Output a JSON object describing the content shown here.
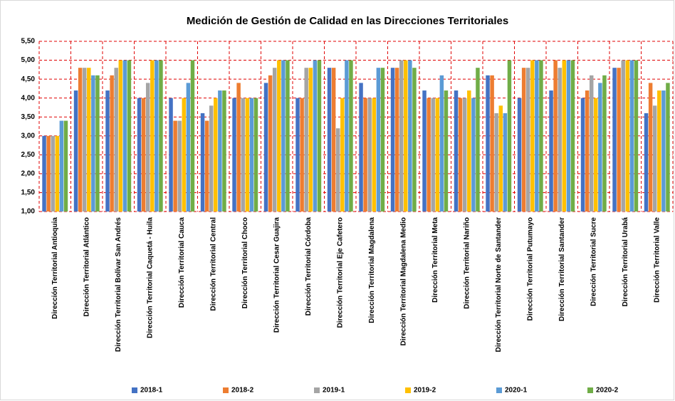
{
  "chart_data": {
    "type": "bar",
    "title": "Medición de Gestión de Calidad en las Direcciones Territoriales",
    "categories": [
      "Dirección Territorial Antioquia",
      "Dirección Territorial Atlántico",
      "Dirección Territorial Bolívar San Andrés",
      "Dirección Territorial Caquetá - Huila",
      "Dirección Territorial Cauca",
      "Dirección Territorial Central",
      "Dirección Territorial Choco",
      "Dirección Territorial Cesar Guajira",
      "Dirección Territorial Córdoba",
      "Dirección Territorial Eje  Cafetero",
      "Dirección Territorial Magdalena",
      "Dirección Territorial Magdalena Medio",
      "Dirección Territorial Meta",
      "Dirección Territorial Nariño",
      "Dirección Territorial Norte de Santander",
      "Dirección Territorial Putumayo",
      "Dirección Territorial Santander",
      "Dirección Territorial Sucre",
      "Dirección Territorial Urabá",
      "Dirección Territorial Valle"
    ],
    "series": [
      {
        "name": "2018-1",
        "color": "#4472c4",
        "values": [
          3.0,
          4.2,
          4.2,
          4.0,
          4.0,
          3.6,
          4.0,
          4.4,
          4.0,
          4.8,
          4.4,
          4.8,
          4.2,
          4.2,
          4.6,
          4.0,
          4.2,
          4.0,
          4.8,
          3.6
        ]
      },
      {
        "name": "2018-2",
        "color": "#ed7d31",
        "values": [
          3.0,
          4.8,
          4.6,
          4.0,
          3.4,
          3.4,
          4.4,
          4.6,
          4.0,
          4.8,
          4.0,
          4.8,
          4.0,
          4.0,
          4.6,
          4.8,
          5.0,
          4.2,
          4.8,
          4.4
        ]
      },
      {
        "name": "2019-1",
        "color": "#a5a5a5",
        "values": [
          3.0,
          4.8,
          4.8,
          4.4,
          3.4,
          3.8,
          4.0,
          4.8,
          4.8,
          3.2,
          4.0,
          5.0,
          4.0,
          4.0,
          3.6,
          4.8,
          4.8,
          4.6,
          5.0,
          3.8
        ]
      },
      {
        "name": "2019-2",
        "color": "#ffc000",
        "values": [
          3.0,
          4.8,
          5.0,
          5.0,
          4.0,
          4.0,
          4.0,
          5.0,
          4.8,
          4.0,
          4.0,
          5.0,
          4.0,
          4.2,
          3.8,
          5.0,
          5.0,
          4.0,
          5.0,
          4.2
        ]
      },
      {
        "name": "2020-1",
        "color": "#5b9bd5",
        "values": [
          3.4,
          4.6,
          5.0,
          5.0,
          4.4,
          4.2,
          4.0,
          5.0,
          5.0,
          5.0,
          4.8,
          5.0,
          4.6,
          4.0,
          3.6,
          5.0,
          5.0,
          4.4,
          5.0,
          4.2
        ]
      },
      {
        "name": "2020-2",
        "color": "#70ad47",
        "values": [
          3.4,
          4.6,
          5.0,
          5.0,
          5.0,
          4.2,
          4.0,
          5.0,
          5.0,
          5.0,
          4.8,
          4.8,
          4.2,
          4.8,
          5.0,
          5.0,
          5.0,
          4.6,
          5.0,
          4.4
        ]
      }
    ],
    "ylim": [
      1,
      5.5
    ],
    "yticks": [
      {
        "value": 1,
        "label": "1,00"
      },
      {
        "value": 1.5,
        "label": "1,50"
      },
      {
        "value": 2,
        "label": "2,00"
      },
      {
        "value": 2.5,
        "label": "2,50"
      },
      {
        "value": 3,
        "label": "3,00"
      },
      {
        "value": 3.5,
        "label": "3,50"
      },
      {
        "value": 4,
        "label": "4,00"
      },
      {
        "value": 4.5,
        "label": "4,50"
      },
      {
        "value": 5,
        "label": "5,00"
      },
      {
        "value": 5.5,
        "label": "5,50"
      }
    ],
    "grid": true,
    "legend": "bottom"
  }
}
